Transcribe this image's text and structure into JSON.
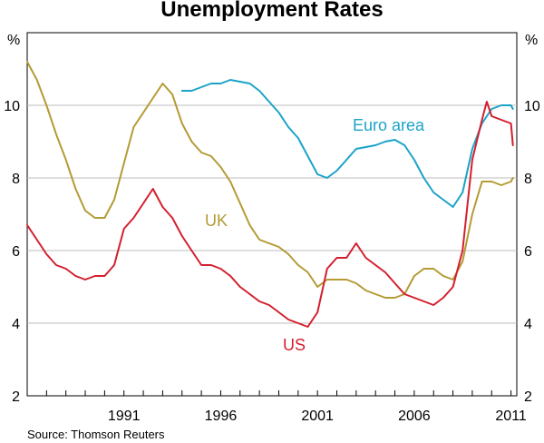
{
  "chart_data": {
    "type": "line",
    "title": "Unemployment Rates",
    "source": "Source: Thomson Reuters",
    "xlabel": "",
    "ylabel_left": "%",
    "ylabel_right": "%",
    "xlim": [
      1986.0,
      2011.3
    ],
    "ylim": [
      2,
      12
    ],
    "y_ticks": [
      2,
      4,
      6,
      8,
      10
    ],
    "x_ticks": [
      1991,
      1996,
      2001,
      2006,
      2011
    ],
    "grid": "horizontal",
    "series": [
      {
        "name": "Euro area",
        "color": "#1ca3c9",
        "points": [
          [
            1994.0,
            10.4
          ],
          [
            1994.5,
            10.4
          ],
          [
            1995.0,
            10.5
          ],
          [
            1995.5,
            10.6
          ],
          [
            1996.0,
            10.6
          ],
          [
            1996.5,
            10.7
          ],
          [
            1997.0,
            10.65
          ],
          [
            1997.5,
            10.6
          ],
          [
            1998.0,
            10.4
          ],
          [
            1998.5,
            10.1
          ],
          [
            1999.0,
            9.8
          ],
          [
            1999.5,
            9.4
          ],
          [
            2000.0,
            9.1
          ],
          [
            2000.5,
            8.6
          ],
          [
            2001.0,
            8.1
          ],
          [
            2001.5,
            8.0
          ],
          [
            2002.0,
            8.2
          ],
          [
            2002.5,
            8.5
          ],
          [
            2003.0,
            8.8
          ],
          [
            2003.5,
            8.85
          ],
          [
            2004.0,
            8.9
          ],
          [
            2004.5,
            9.0
          ],
          [
            2005.0,
            9.05
          ],
          [
            2005.5,
            8.9
          ],
          [
            2006.0,
            8.5
          ],
          [
            2006.5,
            8.0
          ],
          [
            2007.0,
            7.6
          ],
          [
            2007.5,
            7.4
          ],
          [
            2008.0,
            7.2
          ],
          [
            2008.5,
            7.6
          ],
          [
            2009.0,
            8.8
          ],
          [
            2009.5,
            9.5
          ],
          [
            2010.0,
            9.9
          ],
          [
            2010.5,
            10.0
          ],
          [
            2011.0,
            10.0
          ],
          [
            2011.1,
            9.9
          ]
        ]
      },
      {
        "name": "UK",
        "color": "#b49b35",
        "points": [
          [
            1986.0,
            11.2
          ],
          [
            1986.5,
            10.7
          ],
          [
            1987.0,
            10.0
          ],
          [
            1987.5,
            9.2
          ],
          [
            1988.0,
            8.5
          ],
          [
            1988.5,
            7.7
          ],
          [
            1989.0,
            7.1
          ],
          [
            1989.5,
            6.9
          ],
          [
            1990.0,
            6.9
          ],
          [
            1990.5,
            7.4
          ],
          [
            1991.0,
            8.4
          ],
          [
            1991.5,
            9.4
          ],
          [
            1992.0,
            9.8
          ],
          [
            1992.5,
            10.2
          ],
          [
            1993.0,
            10.6
          ],
          [
            1993.5,
            10.3
          ],
          [
            1994.0,
            9.5
          ],
          [
            1994.5,
            9.0
          ],
          [
            1995.0,
            8.7
          ],
          [
            1995.5,
            8.6
          ],
          [
            1996.0,
            8.3
          ],
          [
            1996.5,
            7.9
          ],
          [
            1997.0,
            7.3
          ],
          [
            1997.5,
            6.7
          ],
          [
            1998.0,
            6.3
          ],
          [
            1998.5,
            6.2
          ],
          [
            1999.0,
            6.1
          ],
          [
            1999.5,
            5.9
          ],
          [
            2000.0,
            5.6
          ],
          [
            2000.5,
            5.4
          ],
          [
            2001.0,
            5.0
          ],
          [
            2001.5,
            5.2
          ],
          [
            2002.0,
            5.2
          ],
          [
            2002.5,
            5.2
          ],
          [
            2003.0,
            5.1
          ],
          [
            2003.5,
            4.9
          ],
          [
            2004.0,
            4.8
          ],
          [
            2004.5,
            4.7
          ],
          [
            2005.0,
            4.7
          ],
          [
            2005.5,
            4.8
          ],
          [
            2006.0,
            5.3
          ],
          [
            2006.5,
            5.5
          ],
          [
            2007.0,
            5.5
          ],
          [
            2007.5,
            5.3
          ],
          [
            2008.0,
            5.2
          ],
          [
            2008.5,
            5.7
          ],
          [
            2009.0,
            7.0
          ],
          [
            2009.5,
            7.9
          ],
          [
            2010.0,
            7.9
          ],
          [
            2010.5,
            7.8
          ],
          [
            2011.0,
            7.9
          ],
          [
            2011.1,
            8.0
          ]
        ]
      },
      {
        "name": "US",
        "color": "#d3202f",
        "points": [
          [
            1986.0,
            6.7
          ],
          [
            1986.5,
            6.3
          ],
          [
            1987.0,
            5.9
          ],
          [
            1987.5,
            5.6
          ],
          [
            1988.0,
            5.5
          ],
          [
            1988.5,
            5.3
          ],
          [
            1989.0,
            5.2
          ],
          [
            1989.5,
            5.3
          ],
          [
            1990.0,
            5.3
          ],
          [
            1990.5,
            5.6
          ],
          [
            1991.0,
            6.6
          ],
          [
            1991.5,
            6.9
          ],
          [
            1992.0,
            7.3
          ],
          [
            1992.5,
            7.7
          ],
          [
            1993.0,
            7.2
          ],
          [
            1993.5,
            6.9
          ],
          [
            1994.0,
            6.4
          ],
          [
            1994.5,
            6.0
          ],
          [
            1995.0,
            5.6
          ],
          [
            1995.5,
            5.6
          ],
          [
            1996.0,
            5.5
          ],
          [
            1996.5,
            5.3
          ],
          [
            1997.0,
            5.0
          ],
          [
            1997.5,
            4.8
          ],
          [
            1998.0,
            4.6
          ],
          [
            1998.5,
            4.5
          ],
          [
            1999.0,
            4.3
          ],
          [
            1999.5,
            4.1
          ],
          [
            2000.0,
            4.0
          ],
          [
            2000.5,
            3.9
          ],
          [
            2001.0,
            4.3
          ],
          [
            2001.5,
            5.5
          ],
          [
            2002.0,
            5.8
          ],
          [
            2002.5,
            5.8
          ],
          [
            2003.0,
            6.2
          ],
          [
            2003.5,
            5.8
          ],
          [
            2004.0,
            5.6
          ],
          [
            2004.5,
            5.4
          ],
          [
            2005.0,
            5.1
          ],
          [
            2005.5,
            4.8
          ],
          [
            2006.0,
            4.7
          ],
          [
            2006.5,
            4.6
          ],
          [
            2007.0,
            4.5
          ],
          [
            2007.5,
            4.7
          ],
          [
            2008.0,
            5.0
          ],
          [
            2008.5,
            6.0
          ],
          [
            2009.0,
            8.5
          ],
          [
            2009.5,
            9.6
          ],
          [
            2009.75,
            10.1
          ],
          [
            2010.0,
            9.7
          ],
          [
            2010.5,
            9.6
          ],
          [
            2011.0,
            9.5
          ],
          [
            2011.1,
            8.9
          ]
        ]
      }
    ]
  }
}
